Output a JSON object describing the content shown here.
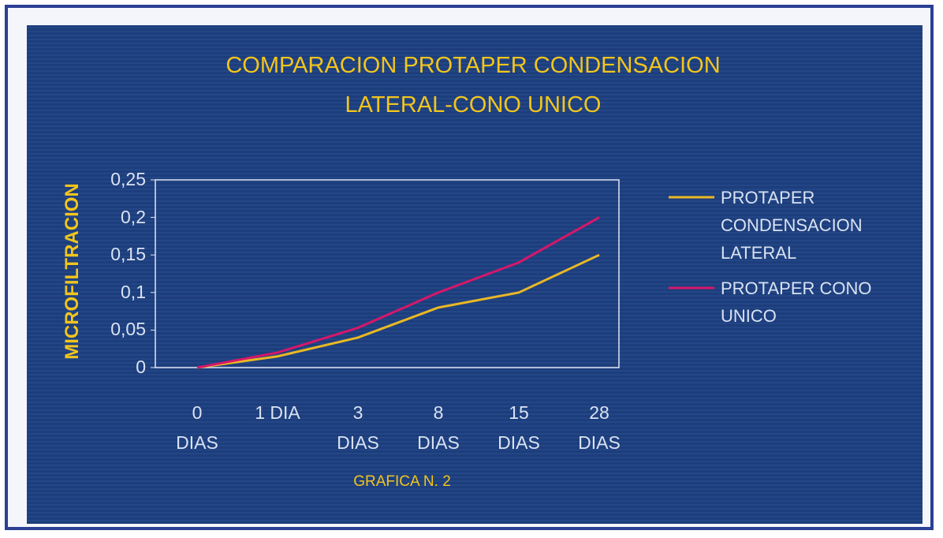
{
  "chart_data": {
    "type": "line",
    "title": "COMPARACION PROTAPER CONDENSACION\nLATERAL-CONO UNICO",
    "y_label": "MICROFILTRACION",
    "annotation": "GRAFICA N. 2",
    "categories": [
      "0\nDIAS",
      "1 DIA",
      "3\nDIAS",
      "8\nDIAS",
      "15\nDIAS",
      "28\nDIAS"
    ],
    "series": [
      {
        "name": "PROTAPER\nCONDENSACION\nLATERAL",
        "color": "#e9b824",
        "values": [
          0,
          0.015,
          0.04,
          0.08,
          0.1,
          0.15
        ]
      },
      {
        "name": "PROTAPER CONO\nUNICO",
        "color": "#d6176a",
        "values": [
          0,
          0.02,
          0.053,
          0.1,
          0.14,
          0.2
        ]
      }
    ],
    "ylim": [
      0,
      0.25
    ],
    "yticks": [
      {
        "value": 0,
        "label": "0"
      },
      {
        "value": 0.05,
        "label": "0,05"
      },
      {
        "value": 0.1,
        "label": "0,1"
      },
      {
        "value": 0.15,
        "label": "0,15"
      },
      {
        "value": 0.2,
        "label": "0,2"
      },
      {
        "value": 0.25,
        "label": "0,25"
      }
    ],
    "legend": "right"
  }
}
